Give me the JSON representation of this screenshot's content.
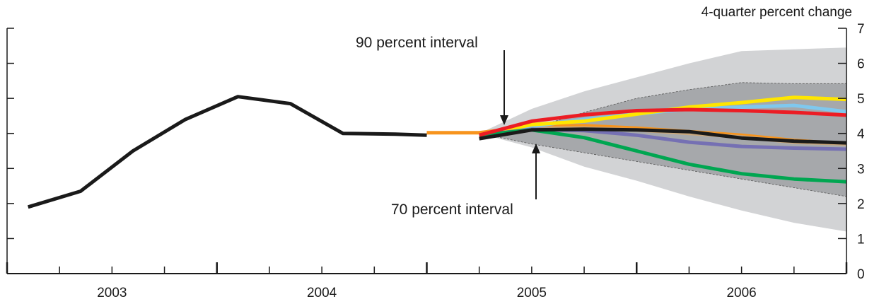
{
  "chart_data": {
    "type": "line",
    "y_axis_title": "4-quarter percent change",
    "y_ticks": [
      "0",
      "1",
      "2",
      "3",
      "4",
      "5",
      "6",
      "7"
    ],
    "ylim": [
      0,
      7
    ],
    "xlim": [
      2002.5,
      2006.5
    ],
    "year_labels": [
      "2003",
      "2004",
      "2005",
      "2006"
    ],
    "grid": false,
    "annotations": {
      "interval_90": "90 percent interval",
      "interval_70": "70 percent interval"
    },
    "colors": {
      "band_90": "#d2d3d5",
      "band_70": "#a6a8ab",
      "history": "#1a1a1a",
      "black": "#1a1a1a",
      "yellow": "#ffe600",
      "light_blue": "#7fc8ee",
      "red": "#ec1c24",
      "orange": "#f7941d",
      "tan": "#c9a77c",
      "purple": "#7570b3",
      "green": "#00a651"
    },
    "band_x": [
      2004.75,
      2005.0,
      2005.25,
      2005.5,
      2005.75,
      2006.0,
      2006.25,
      2006.5
    ],
    "band_90": {
      "upper": [
        4.0,
        4.7,
        5.2,
        5.6,
        6.0,
        6.35,
        6.4,
        6.45
      ],
      "lower": [
        4.0,
        3.6,
        3.05,
        2.65,
        2.2,
        1.8,
        1.45,
        1.2
      ]
    },
    "band_70": {
      "upper": [
        4.0,
        4.15,
        4.6,
        5.0,
        5.25,
        5.45,
        5.42,
        5.42
      ],
      "lower": [
        4.0,
        3.7,
        3.45,
        3.2,
        2.95,
        2.7,
        2.45,
        2.2
      ]
    },
    "history": {
      "name": "",
      "x": [
        2002.6,
        2002.85,
        2003.1,
        2003.35,
        2003.6,
        2003.85,
        2004.1,
        2004.35,
        2004.5
      ],
      "y": [
        1.9,
        2.35,
        3.5,
        4.4,
        5.05,
        4.85,
        4.0,
        3.98,
        3.95
      ]
    },
    "series": [
      {
        "color_key": "orange",
        "x": [
          2004.5,
          2004.75,
          2005.0,
          2005.25,
          2005.5,
          2005.75,
          2006.0,
          2006.25,
          2006.5
        ],
        "y": [
          4.02,
          4.02,
          4.2,
          4.22,
          4.15,
          4.05,
          3.95,
          3.8,
          3.7
        ]
      },
      {
        "color_key": "tan",
        "x": [
          2004.75,
          2005.0,
          2005.25,
          2005.5,
          2005.75,
          2006.0,
          2006.25,
          2006.5
        ],
        "y": [
          3.95,
          4.15,
          4.15,
          4.1,
          4.0,
          3.9,
          3.75,
          3.7
        ]
      },
      {
        "color_key": "light_blue",
        "x": [
          2004.75,
          2005.0,
          2005.25,
          2005.5,
          2005.75,
          2006.0,
          2006.25,
          2006.5
        ],
        "y": [
          3.95,
          4.2,
          4.4,
          4.55,
          4.7,
          4.75,
          4.8,
          4.62
        ]
      },
      {
        "color_key": "yellow",
        "x": [
          2004.75,
          2005.0,
          2005.25,
          2005.5,
          2005.75,
          2006.0,
          2006.25,
          2006.5
        ],
        "y": [
          3.95,
          4.25,
          4.35,
          4.55,
          4.75,
          4.88,
          5.03,
          4.97
        ]
      },
      {
        "color_key": "purple",
        "x": [
          2004.75,
          2005.0,
          2005.25,
          2005.5,
          2005.75,
          2006.0,
          2006.25,
          2006.5
        ],
        "y": [
          3.95,
          4.12,
          4.08,
          3.95,
          3.75,
          3.63,
          3.58,
          3.55
        ]
      },
      {
        "color_key": "green",
        "x": [
          2004.75,
          2005.0,
          2005.25,
          2005.5,
          2005.75,
          2006.0,
          2006.25,
          2006.5
        ],
        "y": [
          3.95,
          4.1,
          3.88,
          3.5,
          3.12,
          2.85,
          2.7,
          2.62
        ]
      },
      {
        "color_key": "red",
        "x": [
          2004.75,
          2005.0,
          2005.25,
          2005.5,
          2005.75,
          2006.0,
          2006.25,
          2006.5
        ],
        "y": [
          3.95,
          4.35,
          4.53,
          4.65,
          4.68,
          4.65,
          4.6,
          4.52
        ]
      },
      {
        "color_key": "black",
        "x": [
          2004.75,
          2005.0,
          2005.25,
          2005.5,
          2005.75,
          2006.0,
          2006.25,
          2006.5
        ],
        "y": [
          3.85,
          4.1,
          4.12,
          4.1,
          4.05,
          3.87,
          3.78,
          3.73
        ]
      }
    ]
  }
}
